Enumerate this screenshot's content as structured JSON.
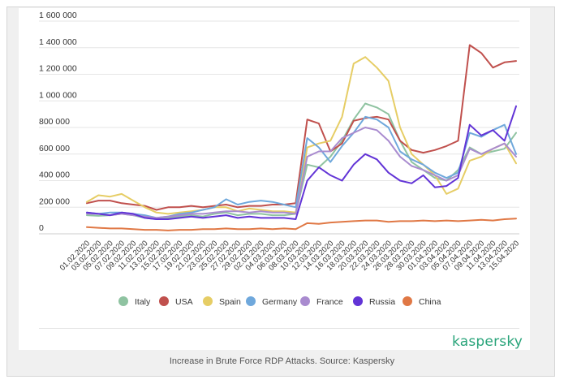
{
  "chart_data": {
    "type": "line",
    "title": "",
    "xlabel": "",
    "ylabel": "",
    "ylim": [
      0,
      1600000
    ],
    "yticks": [
      0,
      200000,
      400000,
      600000,
      800000,
      1000000,
      1200000,
      1400000,
      1600000
    ],
    "ytick_labels": [
      "0",
      "200 000",
      "400 000",
      "600 000",
      "800 000",
      "1 000 000",
      "1 200 000",
      "1 400 000",
      "1 600 000"
    ],
    "grid": true,
    "legend_position": "bottom",
    "x": [
      "01.02.2020",
      "03.02.2020",
      "05.02.2020",
      "07.02.2020",
      "09.02.2020",
      "11.02.2020",
      "13.02.2020",
      "15.02.2020",
      "17.02.2020",
      "19.02.2020",
      "21.02.2020",
      "23.02.2020",
      "25.02.2020",
      "27.02.2020",
      "29.02.2020",
      "02.03.2020",
      "04.03.2020",
      "06.03.2020",
      "08.03.2020",
      "10.03.2020",
      "12.03.2020",
      "14.03.2020",
      "16.03.2020",
      "18.03.2020",
      "20.03.2020",
      "22.03.2020",
      "24.03.2020",
      "26.03.2020",
      "28.03.2020",
      "30.03.2020",
      "01.04.2020",
      "03.04.2020",
      "05.04.2020",
      "07.04.2020",
      "09.04.2020",
      "11.04.2020",
      "13.04.2020",
      "15.04.2020"
    ],
    "series": [
      {
        "name": "Italy",
        "color": "#8fc3a1",
        "values": [
          140000,
          135000,
          140000,
          150000,
          140000,
          120000,
          110000,
          120000,
          130000,
          140000,
          130000,
          150000,
          160000,
          140000,
          150000,
          150000,
          140000,
          140000,
          150000,
          520000,
          500000,
          580000,
          700000,
          860000,
          980000,
          950000,
          900000,
          700000,
          540000,
          480000,
          420000,
          400000,
          480000,
          650000,
          600000,
          620000,
          640000,
          760000
        ]
      },
      {
        "name": "USA",
        "color": "#c0504d",
        "values": [
          230000,
          250000,
          250000,
          230000,
          220000,
          210000,
          180000,
          200000,
          200000,
          210000,
          200000,
          210000,
          220000,
          200000,
          210000,
          210000,
          220000,
          220000,
          230000,
          860000,
          830000,
          620000,
          680000,
          850000,
          870000,
          880000,
          860000,
          700000,
          630000,
          610000,
          630000,
          660000,
          700000,
          1420000,
          1360000,
          1250000,
          1290000,
          1300000
        ]
      },
      {
        "name": "Spain",
        "color": "#e6cd65",
        "values": [
          240000,
          290000,
          280000,
          300000,
          250000,
          200000,
          160000,
          150000,
          160000,
          170000,
          180000,
          200000,
          200000,
          170000,
          190000,
          180000,
          170000,
          170000,
          160000,
          650000,
          680000,
          700000,
          880000,
          1280000,
          1330000,
          1250000,
          1150000,
          800000,
          600000,
          520000,
          440000,
          300000,
          340000,
          550000,
          580000,
          640000,
          680000,
          530000
        ]
      },
      {
        "name": "Germany",
        "color": "#6fa8dc",
        "values": [
          160000,
          150000,
          160000,
          160000,
          150000,
          140000,
          120000,
          130000,
          150000,
          160000,
          180000,
          200000,
          260000,
          220000,
          240000,
          250000,
          240000,
          220000,
          200000,
          720000,
          650000,
          540000,
          660000,
          760000,
          880000,
          860000,
          800000,
          620000,
          560000,
          520000,
          460000,
          420000,
          460000,
          760000,
          730000,
          780000,
          820000,
          600000
        ]
      },
      {
        "name": "France",
        "color": "#a98bcf",
        "values": [
          150000,
          150000,
          140000,
          150000,
          140000,
          130000,
          120000,
          130000,
          140000,
          150000,
          150000,
          160000,
          170000,
          170000,
          160000,
          170000,
          160000,
          160000,
          150000,
          580000,
          620000,
          620000,
          720000,
          760000,
          800000,
          780000,
          700000,
          580000,
          510000,
          480000,
          440000,
          400000,
          440000,
          640000,
          600000,
          640000,
          680000,
          580000
        ]
      },
      {
        "name": "Russia",
        "color": "#6234d6",
        "values": [
          160000,
          150000,
          140000,
          160000,
          150000,
          120000,
          110000,
          110000,
          120000,
          130000,
          120000,
          130000,
          140000,
          120000,
          130000,
          120000,
          120000,
          120000,
          110000,
          400000,
          500000,
          440000,
          400000,
          520000,
          600000,
          560000,
          460000,
          400000,
          380000,
          440000,
          350000,
          360000,
          420000,
          820000,
          740000,
          780000,
          700000,
          960000
        ]
      },
      {
        "name": "China",
        "color": "#e07845",
        "values": [
          50000,
          45000,
          40000,
          40000,
          35000,
          30000,
          30000,
          25000,
          30000,
          30000,
          35000,
          35000,
          40000,
          35000,
          35000,
          40000,
          35000,
          40000,
          35000,
          80000,
          75000,
          85000,
          90000,
          95000,
          100000,
          100000,
          90000,
          95000,
          95000,
          100000,
          95000,
          100000,
          95000,
          100000,
          105000,
          100000,
          110000,
          115000
        ]
      }
    ]
  },
  "brand": "kaspersky",
  "caption": "Increase in Brute Force RDP Attacks. Source: Kaspersky"
}
